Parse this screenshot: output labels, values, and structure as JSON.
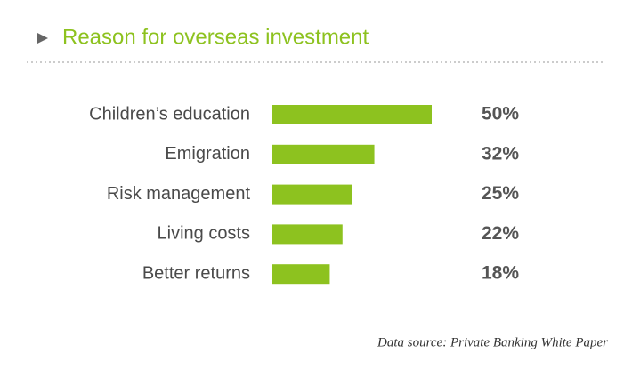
{
  "chart_data": {
    "type": "bar",
    "orientation": "horizontal",
    "title": "Reason for overseas investment",
    "categories": [
      "Children’s education",
      "Emigration",
      "Risk management",
      "Living costs",
      "Better returns"
    ],
    "values": [
      50,
      32,
      25,
      22,
      18
    ],
    "value_labels": [
      "50%",
      "32%",
      "25%",
      "22%",
      "18%"
    ],
    "color": "#8dc21f",
    "source": "Data source: Private Banking White Paper"
  }
}
